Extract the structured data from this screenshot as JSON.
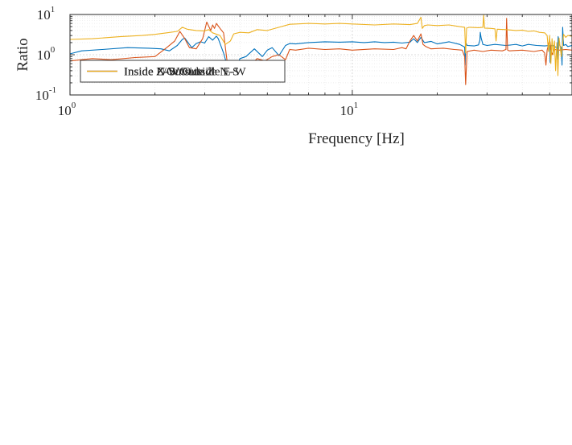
{
  "chart_data": [
    {
      "type": "line",
      "xscale": "log",
      "yscale": "log",
      "xlim": [
        1,
        60
      ],
      "ylim": [
        0.1,
        10
      ],
      "xlabel": "Frequency [Hz]",
      "ylabel": "Ratio",
      "grid": true,
      "legend_position": "bottom-left",
      "x_ticks": [
        {
          "value": 1,
          "base": "10",
          "exp": "0"
        },
        {
          "value": 10,
          "base": "10",
          "exp": "1"
        }
      ],
      "y_ticks": [
        {
          "value": 0.1,
          "base": "10",
          "exp": "-1"
        },
        {
          "value": 1,
          "base": "10",
          "exp": "0"
        },
        {
          "value": 10,
          "base": "10",
          "exp": "1"
        }
      ],
      "series": [
        {
          "name": "Inside N-S/Outside N-S",
          "name_parts": [
            {
              "text": "Inside N-S/Outside N-S",
              "italic": false
            }
          ],
          "color": "#0072BD",
          "x": [
            1.0,
            1.1,
            1.3,
            1.6,
            1.9,
            2.1,
            2.25,
            2.4,
            2.5,
            2.55,
            2.62,
            2.7,
            2.8,
            2.9,
            3.0,
            3.1,
            3.2,
            3.3,
            3.35,
            3.5,
            3.6,
            3.8,
            4.0,
            4.2,
            4.5,
            4.8,
            5.0,
            5.2,
            5.5,
            5.8,
            6.0,
            6.3,
            7.0,
            8.0,
            9.0,
            10.0,
            11.0,
            12.0,
            13.0,
            14.0,
            15.0,
            16.0,
            16.5,
            17.0,
            17.5,
            18.0,
            19.0,
            20.0,
            22.0,
            24.0,
            25.0,
            25.1,
            25.2,
            25.5,
            27.0,
            28.0,
            28.3,
            28.4,
            28.6,
            28.8,
            29.0,
            30.0,
            32.0,
            35.0,
            38.0,
            40.0,
            42.0,
            45.0,
            48.0,
            50.0,
            50.2,
            50.4,
            51.0,
            52.0,
            53.0,
            53.3,
            53.6,
            54.0,
            55.0,
            55.3,
            55.6,
            56.0,
            57.0,
            58.0,
            60.0
          ],
          "y": [
            1.05,
            1.25,
            1.35,
            1.5,
            1.45,
            1.4,
            1.25,
            1.7,
            2.4,
            2.6,
            2.0,
            1.5,
            1.9,
            2.1,
            1.95,
            2.8,
            2.3,
            2.9,
            2.5,
            1.1,
            0.55,
            0.35,
            0.8,
            0.9,
            1.4,
            0.9,
            1.3,
            1.5,
            0.95,
            1.7,
            1.9,
            1.85,
            2.0,
            2.1,
            2.05,
            2.1,
            2.0,
            2.1,
            2.0,
            2.05,
            1.95,
            2.05,
            2.5,
            2.0,
            2.7,
            2.0,
            2.15,
            1.85,
            2.1,
            1.8,
            1.55,
            0.55,
            2.05,
            1.7,
            1.65,
            1.75,
            2.3,
            3.6,
            2.6,
            2.2,
            1.8,
            1.7,
            1.8,
            1.7,
            1.8,
            1.65,
            1.8,
            1.7,
            1.65,
            1.7,
            0.65,
            1.6,
            1.75,
            1.6,
            1.5,
            0.75,
            2.8,
            1.8,
            1.5,
            0.55,
            4.8,
            1.7,
            1.8,
            1.6,
            1.7
          ]
        },
        {
          "name": "Inside E-W/Outside E-W",
          "name_parts": [
            {
              "text": "Inside E-W/Outside E-W",
              "italic": false
            }
          ],
          "color": "#D95319",
          "x": [
            1.0,
            1.2,
            1.4,
            1.7,
            2.0,
            2.2,
            2.35,
            2.45,
            2.55,
            2.65,
            2.8,
            2.95,
            3.05,
            3.15,
            3.2,
            3.25,
            3.3,
            3.4,
            3.5,
            3.6,
            3.75,
            3.9,
            4.0,
            4.3,
            4.6,
            4.9,
            5.2,
            5.5,
            5.8,
            6.0,
            6.3,
            7.0,
            8.0,
            9.0,
            10.0,
            12.0,
            14.0,
            15.0,
            15.5,
            16.0,
            16.5,
            17.0,
            17.5,
            17.8,
            18.2,
            19.0,
            21.0,
            23.0,
            24.5,
            25.0,
            25.2,
            25.5,
            27.0,
            29.0,
            31.0,
            34.0,
            35.0,
            35.2,
            35.5,
            36.0,
            40.0,
            44.0,
            47.0,
            48.0,
            48.5,
            49.0,
            50.0,
            50.5,
            51.0,
            52.0,
            54.0,
            57.0,
            60.0
          ],
          "y": [
            0.7,
            0.8,
            0.75,
            0.85,
            0.9,
            1.5,
            2.2,
            3.8,
            2.5,
            1.5,
            1.4,
            2.5,
            6.5,
            4.0,
            5.5,
            4.5,
            6.0,
            4.5,
            3.5,
            0.7,
            0.5,
            0.45,
            0.6,
            0.5,
            0.8,
            0.7,
            0.9,
            1.0,
            0.75,
            1.35,
            1.3,
            1.45,
            1.35,
            1.4,
            1.3,
            1.4,
            1.35,
            1.5,
            1.4,
            2.2,
            3.0,
            2.2,
            3.3,
            1.8,
            1.6,
            1.4,
            1.45,
            1.35,
            1.3,
            0.9,
            0.18,
            1.2,
            1.3,
            1.2,
            1.3,
            1.25,
            1.35,
            8.0,
            1.3,
            1.25,
            1.3,
            1.2,
            1.3,
            1.1,
            0.55,
            1.3,
            2.4,
            1.5,
            1.0,
            1.35,
            1.3,
            1.35,
            1.3
          ]
        },
        {
          "name": "Inside Z/Outside Z",
          "name_parts": [
            {
              "text": "Inside ",
              "italic": false
            },
            {
              "text": "Z",
              "italic": true
            },
            {
              "text": "/Outside ",
              "italic": false
            },
            {
              "text": "Z",
              "italic": true
            }
          ],
          "color": "#EDB120",
          "x": [
            1.0,
            1.2,
            1.5,
            1.8,
            2.0,
            2.2,
            2.4,
            2.5,
            2.6,
            2.8,
            3.0,
            3.1,
            3.2,
            3.4,
            3.55,
            3.7,
            3.8,
            4.0,
            4.3,
            4.6,
            5.0,
            5.5,
            6.0,
            7.0,
            8.0,
            9.0,
            10.0,
            12.0,
            14.0,
            16.0,
            17.0,
            17.5,
            17.7,
            18.0,
            18.5,
            20.0,
            22.0,
            24.0,
            25.0,
            25.2,
            25.4,
            26.0,
            28.0,
            29.0,
            29.2,
            29.4,
            31.0,
            32.0,
            32.3,
            32.6,
            35.0,
            38.0,
            40.0,
            42.0,
            44.0,
            46.0,
            48.0,
            49.0,
            49.5,
            50.0,
            50.5,
            51.0,
            51.5,
            52.0,
            52.5,
            53.0,
            53.5,
            54.0,
            55.0,
            56.0,
            57.0,
            58.0,
            60.0
          ],
          "y": [
            2.4,
            2.5,
            2.8,
            3.0,
            3.2,
            3.5,
            3.8,
            4.8,
            4.3,
            4.0,
            3.9,
            4.2,
            3.5,
            3.0,
            1.8,
            2.2,
            3.3,
            3.6,
            3.5,
            4.2,
            4.0,
            4.8,
            5.7,
            6.0,
            5.8,
            6.0,
            5.8,
            5.5,
            5.8,
            5.6,
            6.0,
            8.5,
            4.5,
            5.3,
            5.5,
            5.3,
            5.5,
            5.0,
            4.8,
            1.1,
            4.6,
            4.8,
            4.7,
            4.8,
            9.5,
            4.6,
            4.5,
            4.4,
            2.2,
            4.3,
            4.2,
            4.0,
            4.1,
            3.8,
            3.9,
            3.6,
            3.5,
            3.0,
            1.2,
            3.0,
            0.6,
            2.5,
            1.0,
            2.2,
            0.4,
            2.0,
            0.3,
            2.6,
            0.9,
            3.2,
            2.7,
            3.0,
            2.9
          ]
        }
      ]
    }
  ]
}
